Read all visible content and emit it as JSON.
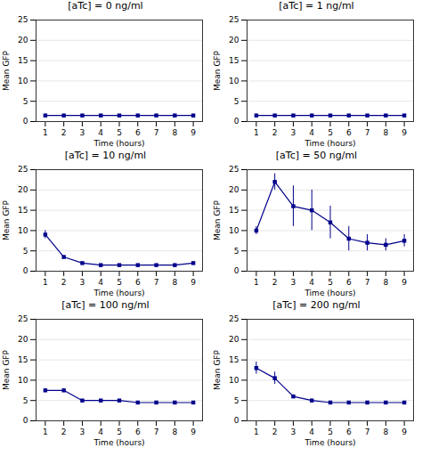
{
  "chart_data": [
    {
      "type": "line",
      "title": "[aTc] = 0 ng/ml",
      "x": [
        1,
        2,
        3,
        4,
        5,
        6,
        7,
        8,
        9
      ],
      "values": [
        1.5,
        1.5,
        1.5,
        1.5,
        1.5,
        1.5,
        1.5,
        1.5,
        1.5
      ],
      "errors": [
        0,
        0,
        0,
        0,
        0,
        0,
        0,
        0,
        0
      ],
      "xlabel": "Time (hours)",
      "ylabel": "Mean GFP",
      "xlim": [
        0.5,
        9.5
      ],
      "xticks": [
        1,
        2,
        3,
        4,
        5,
        6,
        7,
        8,
        9
      ],
      "ylim": [
        0,
        25
      ],
      "yticks": [
        0,
        5,
        10,
        15,
        20,
        25
      ],
      "grid": "y",
      "color": "#00008B",
      "marker": "square"
    },
    {
      "type": "line",
      "title": "[aTc] = 1 ng/ml",
      "x": [
        1,
        2,
        3,
        4,
        5,
        6,
        7,
        8,
        9
      ],
      "values": [
        1.5,
        1.5,
        1.5,
        1.5,
        1.5,
        1.5,
        1.5,
        1.5,
        1.5
      ],
      "errors": [
        0,
        0,
        0,
        0,
        0,
        0,
        0,
        0,
        0
      ],
      "xlabel": "Time (hours)",
      "ylabel": "Mean GFP",
      "xlim": [
        0.5,
        9.5
      ],
      "xticks": [
        1,
        2,
        3,
        4,
        5,
        6,
        7,
        8,
        9
      ],
      "ylim": [
        0,
        25
      ],
      "yticks": [
        0,
        5,
        10,
        15,
        20,
        25
      ],
      "grid": "y",
      "color": "#00008B",
      "marker": "square"
    },
    {
      "type": "line",
      "title": "[aTc] = 10 ng/ml",
      "x": [
        1,
        2,
        3,
        4,
        5,
        6,
        7,
        8,
        9
      ],
      "values": [
        9.0,
        3.5,
        2.0,
        1.5,
        1.5,
        1.5,
        1.5,
        1.5,
        2.0
      ],
      "errors": [
        1.0,
        0,
        0,
        0,
        0,
        0,
        0,
        0,
        0
      ],
      "xlabel": "Time (hours)",
      "ylabel": "Mean GFP",
      "xlim": [
        0.5,
        9.5
      ],
      "xticks": [
        1,
        2,
        3,
        4,
        5,
        6,
        7,
        8,
        9
      ],
      "ylim": [
        0,
        25
      ],
      "yticks": [
        0,
        5,
        10,
        15,
        20,
        25
      ],
      "grid": "y",
      "color": "#00008B",
      "marker": "square"
    },
    {
      "type": "line",
      "title": "[aTc] = 50 ng/ml",
      "x": [
        1,
        2,
        3,
        4,
        5,
        6,
        7,
        8,
        9
      ],
      "values": [
        10.0,
        22.0,
        16.0,
        15.0,
        12.0,
        8.0,
        7.0,
        6.5,
        7.5
      ],
      "errors": [
        1.0,
        2.0,
        5.0,
        5.0,
        4.0,
        3.0,
        2.0,
        1.5,
        1.5
      ],
      "xlabel": "Time (hours)",
      "ylabel": "Mean GFP",
      "xlim": [
        0.5,
        9.5
      ],
      "xticks": [
        1,
        2,
        3,
        4,
        5,
        6,
        7,
        8,
        9
      ],
      "ylim": [
        0,
        25
      ],
      "yticks": [
        0,
        5,
        10,
        15,
        20,
        25
      ],
      "grid": "y",
      "color": "#00008B",
      "marker": "square"
    },
    {
      "type": "line",
      "title": "[aTc] = 100 ng/ml",
      "x": [
        1,
        2,
        3,
        4,
        5,
        6,
        7,
        8,
        9
      ],
      "values": [
        7.5,
        7.5,
        5.0,
        5.0,
        5.0,
        4.5,
        4.5,
        4.5,
        4.5
      ],
      "errors": [
        0,
        0,
        0,
        0,
        0,
        0,
        0,
        0,
        0
      ],
      "xlabel": "Time (hours)",
      "ylabel": "Mean GFP",
      "xlim": [
        0.5,
        9.5
      ],
      "xticks": [
        1,
        2,
        3,
        4,
        5,
        6,
        7,
        8,
        9
      ],
      "ylim": [
        0,
        25
      ],
      "yticks": [
        0,
        5,
        10,
        15,
        20,
        25
      ],
      "grid": "y",
      "color": "#00008B",
      "marker": "square"
    },
    {
      "type": "line",
      "title": "[aTc] = 200 ng/ml",
      "x": [
        1,
        2,
        3,
        4,
        5,
        6,
        7,
        8,
        9
      ],
      "values": [
        13.0,
        10.5,
        6.0,
        5.0,
        4.5,
        4.5,
        4.5,
        4.5,
        4.5
      ],
      "errors": [
        1.5,
        1.5,
        0,
        0,
        0,
        0,
        0,
        0,
        0
      ],
      "xlabel": "Time (hours)",
      "ylabel": "Mean GFP",
      "xlim": [
        0.5,
        9.5
      ],
      "xticks": [
        1,
        2,
        3,
        4,
        5,
        6,
        7,
        8,
        9
      ],
      "ylim": [
        0,
        25
      ],
      "yticks": [
        0,
        5,
        10,
        15,
        20,
        25
      ],
      "grid": "y",
      "color": "#00008B",
      "marker": "square"
    }
  ]
}
